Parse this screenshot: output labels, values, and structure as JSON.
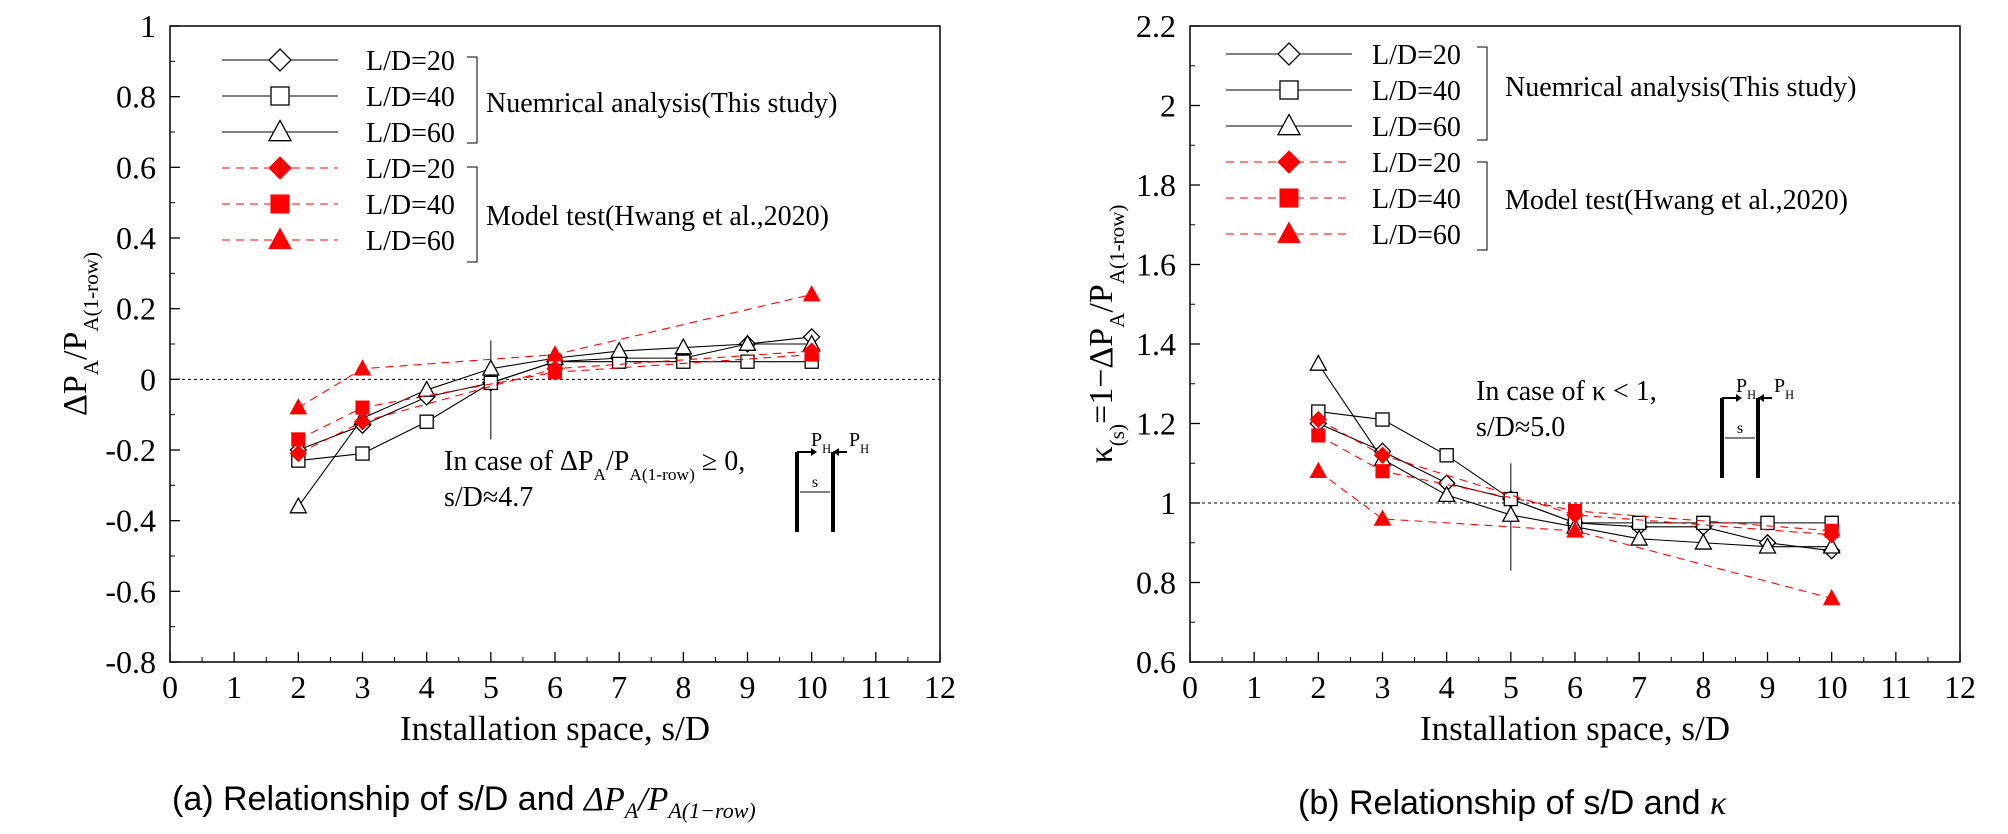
{
  "chart_data": [
    {
      "id": "a",
      "type": "line",
      "title": "",
      "caption_prefix": "(a) Relationship of s/D and",
      "caption_math": "ΔP",
      "caption_math_sub1": "A",
      "caption_math_div": "/P",
      "caption_math_sub2": "A(1−row)",
      "xlabel": "Installation space, s/D",
      "ylabel": "ΔP",
      "ylabel_sub1": "A",
      "ylabel_mid": "/P",
      "ylabel_sub2": "A(1-row)",
      "xlim": [
        0,
        12
      ],
      "ylim": [
        -0.8,
        1
      ],
      "xticks": [
        0,
        1,
        2,
        3,
        4,
        5,
        6,
        7,
        8,
        9,
        10,
        11,
        12
      ],
      "yticks": [
        -0.8,
        -0.6,
        -0.4,
        -0.2,
        0,
        0.2,
        0.4,
        0.6,
        0.8,
        1
      ],
      "ytick_labels": [
        "-0.8",
        "-0.6",
        "-0.4",
        "-0.2",
        "0",
        "0.2",
        "0.4",
        "0.6",
        "0.8",
        "1"
      ],
      "reference_line": 0,
      "divider_x": 5,
      "divider_range": [
        -0.17,
        0.11
      ],
      "x": [
        2,
        3,
        4,
        5,
        6,
        7,
        8,
        9,
        10
      ],
      "series": [
        {
          "name": "L/D=20",
          "group": "num",
          "marker": "diamond",
          "values": [
            -0.2,
            -0.13,
            -0.05,
            -0.01,
            0.05,
            0.06,
            0.06,
            0.1,
            0.12
          ]
        },
        {
          "name": "L/D=40",
          "group": "num",
          "marker": "square",
          "values": [
            -0.23,
            -0.21,
            -0.12,
            -0.01,
            0.05,
            0.05,
            0.05,
            0.05,
            0.05
          ]
        },
        {
          "name": "L/D=60",
          "group": "num",
          "marker": "triangle",
          "values": [
            -0.36,
            -0.11,
            -0.03,
            0.03,
            0.06,
            0.08,
            0.09,
            0.1,
            0.1
          ]
        },
        {
          "name": "L/D=20",
          "group": "exp",
          "marker": "diamond-filled",
          "values": [
            -0.21,
            -0.12,
            null,
            null,
            0.03,
            null,
            null,
            null,
            0.08
          ]
        },
        {
          "name": "L/D=40",
          "group": "exp",
          "marker": "square-filled",
          "values": [
            -0.17,
            -0.08,
            null,
            null,
            0.02,
            null,
            null,
            null,
            0.07
          ]
        },
        {
          "name": "L/D=60",
          "group": "exp",
          "marker": "triangle-filled",
          "values": [
            -0.08,
            0.03,
            null,
            null,
            0.07,
            null,
            null,
            null,
            0.24
          ]
        }
      ],
      "legend": {
        "placement": "top-left",
        "group1_label": "Nuemrical analysis(This study)",
        "group2_label": "Model test(Hwang et al.,2020)"
      },
      "annotation": {
        "prefix": "In case of ΔP",
        "sub1": "A",
        "mid": "/P",
        "sub2": "A(1-row)",
        "suffix": " ≥ 0,",
        "line2": "s/D≈4.7",
        "ph_left": "P",
        "ph_right": "P",
        "ph_sub": "H",
        "s_label": "s"
      }
    },
    {
      "id": "b",
      "type": "line",
      "title": "",
      "caption_prefix": "(b) Relationship of s/D and",
      "caption_math": "κ",
      "xlabel": "Installation space, s/D",
      "ylabel": "κ",
      "ylabel_sub1": "(s)",
      "ylabel_mid": "=1−ΔP",
      "ylabel_sub2": "A",
      "ylabel_mid2": "/P",
      "ylabel_sub3": "A(1-row)",
      "xlim": [
        0,
        12
      ],
      "ylim": [
        0.6,
        2.2
      ],
      "xticks": [
        0,
        1,
        2,
        3,
        4,
        5,
        6,
        7,
        8,
        9,
        10,
        11,
        12
      ],
      "yticks": [
        0.6,
        0.8,
        1.0,
        1.2,
        1.4,
        1.6,
        1.8,
        2.0,
        2.2
      ],
      "ytick_labels": [
        "0.6",
        "0.8",
        "1",
        "1.2",
        "1.4",
        "1.6",
        "1.8",
        "2",
        "2.2"
      ],
      "reference_line": 1,
      "divider_x": 5,
      "divider_range": [
        0.83,
        1.1
      ],
      "x": [
        2,
        3,
        4,
        5,
        6,
        7,
        8,
        9,
        10
      ],
      "series": [
        {
          "name": "L/D=20",
          "group": "num",
          "marker": "diamond",
          "values": [
            1.2,
            1.13,
            1.05,
            1.01,
            0.95,
            0.94,
            0.94,
            0.9,
            0.88
          ]
        },
        {
          "name": "L/D=40",
          "group": "num",
          "marker": "square",
          "values": [
            1.23,
            1.21,
            1.12,
            1.01,
            0.95,
            0.95,
            0.95,
            0.95,
            0.95
          ]
        },
        {
          "name": "L/D=60",
          "group": "num",
          "marker": "triangle",
          "values": [
            1.35,
            1.11,
            1.02,
            0.97,
            0.94,
            0.91,
            0.9,
            0.89,
            0.89
          ]
        },
        {
          "name": "L/D=20",
          "group": "exp",
          "marker": "diamond-filled",
          "values": [
            1.21,
            1.12,
            null,
            null,
            0.97,
            null,
            null,
            null,
            0.92
          ]
        },
        {
          "name": "L/D=40",
          "group": "exp",
          "marker": "square-filled",
          "values": [
            1.17,
            1.08,
            null,
            null,
            0.98,
            null,
            null,
            null,
            0.93
          ]
        },
        {
          "name": "L/D=60",
          "group": "exp",
          "marker": "triangle-filled",
          "values": [
            1.08,
            0.96,
            null,
            null,
            0.93,
            null,
            null,
            null,
            0.76
          ]
        }
      ],
      "legend": {
        "placement": "top-left",
        "group1_label": "Nuemrical analysis(This study)",
        "group2_label": "Model test(Hwang et al.,2020)"
      },
      "annotation": {
        "line1": "In case of  κ < 1,",
        "line2": "s/D≈5.0",
        "ph_left": "P",
        "ph_right": "P",
        "ph_sub": "H",
        "s_label": "s"
      }
    }
  ]
}
